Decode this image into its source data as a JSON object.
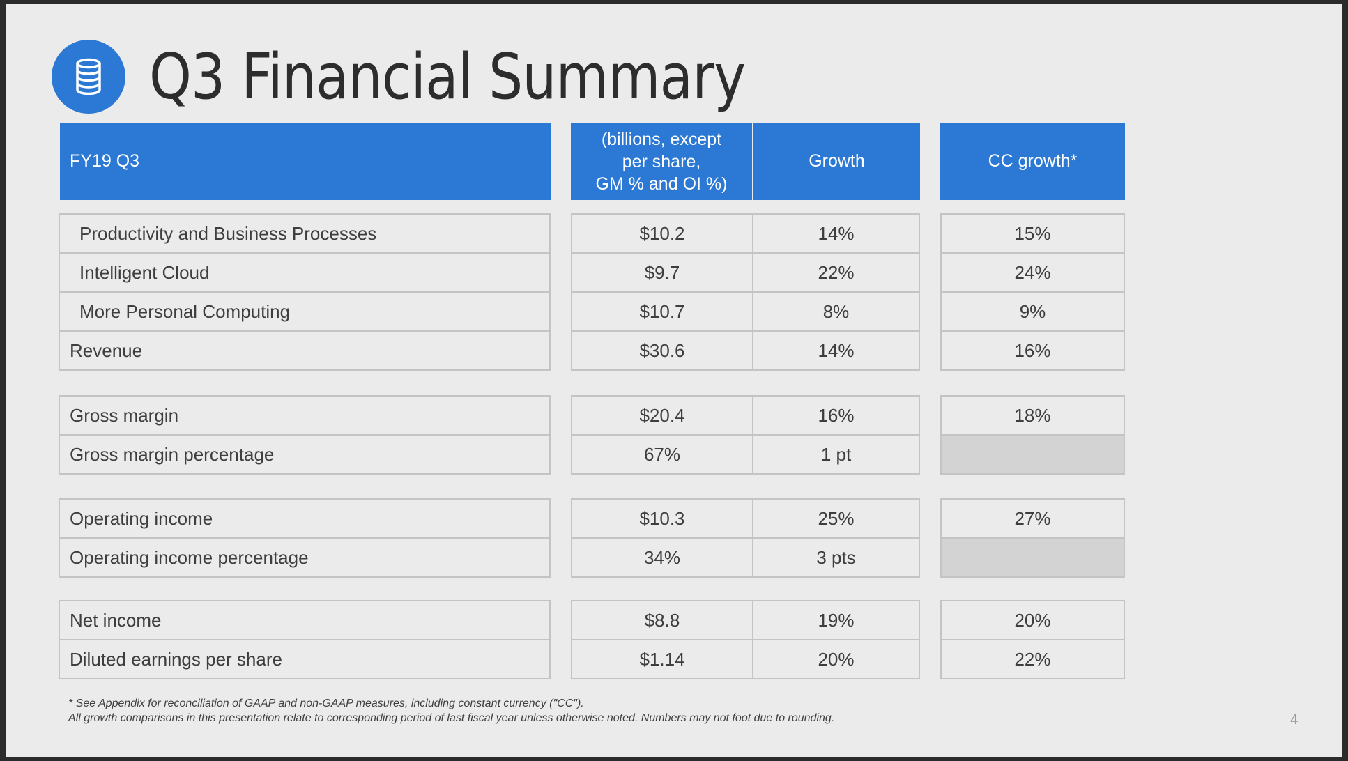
{
  "slide": {
    "title": "Q3 Financial Summary",
    "logo_icon": "database-icon",
    "page_number": "4"
  },
  "table": {
    "header": {
      "label": "FY19 Q3",
      "value_line1": "(billions, except",
      "value_line2": "per share,",
      "value_line3": "GM % and OI %)",
      "growth": "Growth",
      "cc_growth": "CC growth*"
    },
    "rows": [
      {
        "label": "Productivity and Business Processes",
        "value": "$10.2",
        "growth": "14%",
        "cc": "15%"
      },
      {
        "label": "Intelligent Cloud",
        "value": "$9.7",
        "growth": "22%",
        "cc": "24%"
      },
      {
        "label": "More Personal Computing",
        "value": "$10.7",
        "growth": "8%",
        "cc": "9%"
      },
      {
        "label": "Revenue",
        "value": "$30.6",
        "growth": "14%",
        "cc": "16%"
      },
      {
        "label": "Gross margin",
        "value": "$20.4",
        "growth": "16%",
        "cc": "18%"
      },
      {
        "label": "Gross margin percentage",
        "value": "67%",
        "growth": "1 pt",
        "cc": ""
      },
      {
        "label": "Operating income",
        "value": "$10.3",
        "growth": "25%",
        "cc": "27%"
      },
      {
        "label": "Operating income percentage",
        "value": "34%",
        "growth": "3 pts",
        "cc": ""
      },
      {
        "label": "Net income",
        "value": "$8.8",
        "growth": "19%",
        "cc": "20%"
      },
      {
        "label": "Diluted earnings per share",
        "value": "$1.14",
        "growth": "20%",
        "cc": "22%"
      }
    ]
  },
  "footnote": {
    "line1": "* See Appendix for reconciliation of GAAP and non-GAAP measures, including constant currency (\"CC\").",
    "line2": "All growth comparisons in this presentation relate to corresponding period of last fiscal year unless otherwise noted. Numbers may not foot due to rounding."
  },
  "colors": {
    "accent": "#2b79d4",
    "background": "#ebebeb",
    "border": "#c4c4c4",
    "text": "#3e3e3e"
  }
}
